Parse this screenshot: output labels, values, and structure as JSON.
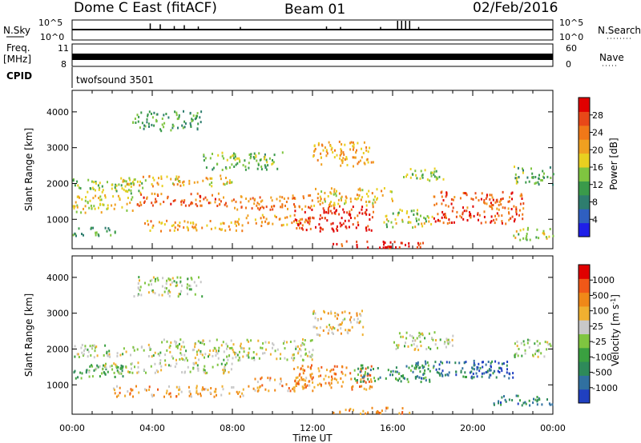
{
  "header": {
    "station": "Dome C East (fitACF)",
    "beam": "Beam 01",
    "date": "02/Feb/2016"
  },
  "status_panel": {
    "left_labels": {
      "nsky": "N.Sky",
      "freq_top": "Freq.",
      "freq_unit": "[MHz]",
      "cpid": "CPID"
    },
    "right_labels": {
      "nsearch": "N.Search",
      "nave": "Nave"
    },
    "nsky_ticks": [
      "10^5",
      "10^0"
    ],
    "freq_ticks": [
      "11",
      "8"
    ],
    "nave_ticks": [
      "60",
      "0"
    ],
    "cpid_text": "twofsound 3501",
    "nsky_spikes": [
      {
        "t": 3.9,
        "v": 0.7
      },
      {
        "t": 4.4,
        "v": 0.6
      },
      {
        "t": 5.1,
        "v": 0.4
      },
      {
        "t": 5.6,
        "v": 0.5
      },
      {
        "t": 6.3,
        "v": 0.35
      },
      {
        "t": 8.4,
        "v": 0.3
      },
      {
        "t": 12.7,
        "v": 0.35
      },
      {
        "t": 13.4,
        "v": 0.3
      },
      {
        "t": 15.4,
        "v": 0.3
      },
      {
        "t": 16.25,
        "v": 1.0
      },
      {
        "t": 16.45,
        "v": 1.0
      },
      {
        "t": 16.65,
        "v": 1.0
      },
      {
        "t": 16.85,
        "v": 1.0
      },
      {
        "t": 17.3,
        "v": 0.3
      }
    ]
  },
  "chart_data": [
    {
      "type": "heatmap",
      "quantity": "power",
      "ylabel": "Slant Range [km]",
      "xlabel": "",
      "xlim": [
        0,
        24
      ],
      "ylim": [
        180,
        4600
      ],
      "yticks": [
        1000,
        2000,
        3000,
        4000
      ],
      "colorbar": {
        "label": "Power [dB]",
        "range": [
          0,
          32
        ],
        "ticks": [
          "4",
          "8",
          "12",
          "16",
          "20",
          "24",
          "28"
        ],
        "colors": [
          "#1f1fe8",
          "#2f5fc0",
          "#2e7d6e",
          "#3a9a4a",
          "#7fc540",
          "#e8d020",
          "#f0a020",
          "#f07818",
          "#e84818",
          "#e00000"
        ]
      },
      "bands": [
        {
          "t0": 0.0,
          "t1": 2.2,
          "r0": 550,
          "r1": 800,
          "level": 0.35
        },
        {
          "t0": 0.0,
          "t1": 3.0,
          "r0": 1200,
          "r1": 1700,
          "level": 0.55
        },
        {
          "t0": 0.0,
          "t1": 3.5,
          "r0": 1750,
          "r1": 2150,
          "level": 0.45
        },
        {
          "t0": 2.0,
          "t1": 8.0,
          "r0": 1950,
          "r1": 2250,
          "level": 0.6
        },
        {
          "t0": 3.0,
          "t1": 7.5,
          "r0": 1400,
          "r1": 1750,
          "level": 0.78
        },
        {
          "t0": 3.5,
          "t1": 8.5,
          "r0": 700,
          "r1": 1000,
          "level": 0.66
        },
        {
          "t0": 7.5,
          "t1": 12.0,
          "r0": 1300,
          "r1": 1700,
          "level": 0.75
        },
        {
          "t0": 8.0,
          "t1": 12.0,
          "r0": 850,
          "r1": 1150,
          "level": 0.65
        },
        {
          "t0": 11.0,
          "t1": 15.0,
          "r0": 700,
          "r1": 1400,
          "level": 0.9
        },
        {
          "t0": 12.0,
          "t1": 16.0,
          "r0": 1400,
          "r1": 1900,
          "level": 0.6
        },
        {
          "t0": 13.0,
          "t1": 17.5,
          "r0": 220,
          "r1": 420,
          "level": 0.92
        },
        {
          "t0": 15.5,
          "t1": 18.0,
          "r0": 800,
          "r1": 1300,
          "level": 0.5
        },
        {
          "t0": 18.0,
          "t1": 22.5,
          "r0": 900,
          "r1": 1800,
          "level": 0.82
        },
        {
          "t0": 22.0,
          "t1": 24.0,
          "r0": 450,
          "r1": 800,
          "level": 0.5
        },
        {
          "t0": 3.0,
          "t1": 6.5,
          "r0": 3500,
          "r1": 4050,
          "level": 0.35
        },
        {
          "t0": 6.5,
          "t1": 10.5,
          "r0": 2400,
          "r1": 2900,
          "level": 0.4
        },
        {
          "t0": 12.0,
          "t1": 15.0,
          "r0": 2500,
          "r1": 3200,
          "level": 0.65
        },
        {
          "t0": 16.5,
          "t1": 18.5,
          "r0": 2100,
          "r1": 2500,
          "level": 0.45
        },
        {
          "t0": 22.0,
          "t1": 24.0,
          "r0": 2000,
          "r1": 2500,
          "level": 0.4
        }
      ]
    },
    {
      "type": "heatmap",
      "quantity": "velocity",
      "ylabel": "Slant Range [km]",
      "xlabel": "Time UT",
      "xlim": [
        0,
        24
      ],
      "ylim": [
        180,
        4600
      ],
      "yticks": [
        1000,
        2000,
        3000,
        4000
      ],
      "xticks": [
        "00:00",
        "04:00",
        "08:00",
        "12:00",
        "16:00",
        "20:00",
        "00:00"
      ],
      "colorbar": {
        "label": "Velocity [m s^-1]",
        "range": [
          -1200,
          1200
        ],
        "ticks": [
          "1000",
          "500",
          "100",
          "25",
          "-25",
          "-100",
          "-500",
          "-1000"
        ],
        "colors": [
          "#2040c0",
          "#3070a0",
          "#2e8a5a",
          "#3aa040",
          "#7fc540",
          "#c8c8c8",
          "#f0b030",
          "#f08818",
          "#f05818",
          "#e00000"
        ]
      },
      "bands": [
        {
          "t0": 0.0,
          "t1": 2.5,
          "r0": 1200,
          "r1": 1600,
          "level": 0.35
        },
        {
          "t0": 0.0,
          "t1": 4.0,
          "r0": 1800,
          "r1": 2150,
          "level": 0.5
        },
        {
          "t0": 4.0,
          "t1": 12.0,
          "r0": 1700,
          "r1": 2300,
          "level": 0.52
        },
        {
          "t0": 0.5,
          "t1": 8.0,
          "r0": 1350,
          "r1": 1650,
          "level": 0.5
        },
        {
          "t0": 2.0,
          "t1": 9.0,
          "r0": 700,
          "r1": 1000,
          "level": 0.68
        },
        {
          "t0": 9.0,
          "t1": 12.0,
          "r0": 850,
          "r1": 1250,
          "level": 0.7
        },
        {
          "t0": 11.0,
          "t1": 15.0,
          "r0": 900,
          "r1": 1600,
          "level": 0.75
        },
        {
          "t0": 14.0,
          "t1": 18.0,
          "r0": 1100,
          "r1": 1600,
          "level": 0.3
        },
        {
          "t0": 17.0,
          "t1": 21.0,
          "r0": 1200,
          "r1": 1700,
          "level": 0.2
        },
        {
          "t0": 20.0,
          "t1": 22.0,
          "r0": 1200,
          "r1": 1700,
          "level": 0.08
        },
        {
          "t0": 21.0,
          "t1": 24.0,
          "r0": 450,
          "r1": 750,
          "level": 0.22
        },
        {
          "t0": 13.0,
          "t1": 17.0,
          "r0": 220,
          "r1": 400,
          "level": 0.72
        },
        {
          "t0": 12.0,
          "t1": 14.5,
          "r0": 2400,
          "r1": 3100,
          "level": 0.62
        },
        {
          "t0": 3.0,
          "t1": 6.5,
          "r0": 3500,
          "r1": 4050,
          "level": 0.5
        },
        {
          "t0": 16.0,
          "t1": 19.0,
          "r0": 2000,
          "r1": 2500,
          "level": 0.5
        },
        {
          "t0": 22.0,
          "t1": 24.0,
          "r0": 1800,
          "r1": 2300,
          "level": 0.48
        }
      ]
    }
  ]
}
